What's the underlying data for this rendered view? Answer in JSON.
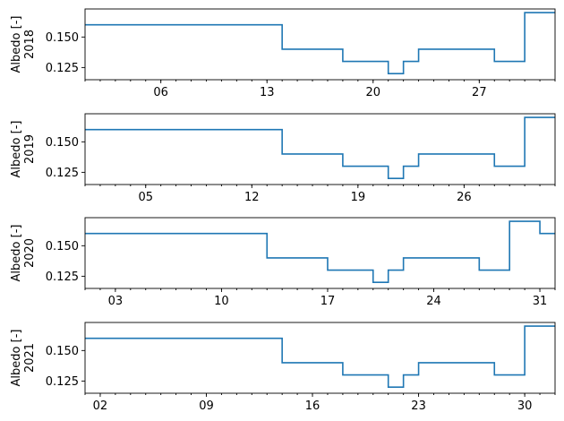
{
  "chart_data": [
    {
      "type": "line",
      "step": "post",
      "ylabel_lines": [
        "Albedo [-]",
        "2018"
      ],
      "series_color": "#1f77b4",
      "xlim": [
        1,
        32
      ],
      "ylim": [
        0.115,
        0.173
      ],
      "yticks": [
        0.125,
        0.15
      ],
      "ytick_labels": [
        "0.125",
        "0.150"
      ],
      "xticks": [
        6,
        13,
        20,
        27
      ],
      "xtick_labels": [
        "06",
        "13",
        "20",
        "27"
      ],
      "x_minor_step": 1,
      "steps": [
        [
          1,
          0.16
        ],
        [
          14,
          0.14
        ],
        [
          18,
          0.13
        ],
        [
          21,
          0.12
        ],
        [
          22,
          0.13
        ],
        [
          23,
          0.14
        ],
        [
          28,
          0.13
        ],
        [
          30,
          0.17
        ],
        [
          32,
          0.17
        ]
      ]
    },
    {
      "type": "line",
      "step": "post",
      "ylabel_lines": [
        "Albedo [-]",
        "2019"
      ],
      "series_color": "#1f77b4",
      "xlim": [
        1,
        32
      ],
      "ylim": [
        0.115,
        0.173
      ],
      "yticks": [
        0.125,
        0.15
      ],
      "ytick_labels": [
        "0.125",
        "0.150"
      ],
      "xticks": [
        5,
        12,
        19,
        26
      ],
      "xtick_labels": [
        "05",
        "12",
        "19",
        "26"
      ],
      "x_minor_step": 1,
      "steps": [
        [
          1,
          0.16
        ],
        [
          14,
          0.14
        ],
        [
          18,
          0.13
        ],
        [
          21,
          0.12
        ],
        [
          22,
          0.13
        ],
        [
          23,
          0.14
        ],
        [
          28,
          0.13
        ],
        [
          30,
          0.17
        ],
        [
          32,
          0.17
        ]
      ]
    },
    {
      "type": "line",
      "step": "post",
      "ylabel_lines": [
        "Albedo [-]",
        "2020"
      ],
      "series_color": "#1f77b4",
      "xlim": [
        1,
        32
      ],
      "ylim": [
        0.115,
        0.173
      ],
      "yticks": [
        0.125,
        0.15
      ],
      "ytick_labels": [
        "0.125",
        "0.150"
      ],
      "xticks": [
        3,
        10,
        17,
        24,
        31
      ],
      "xtick_labels": [
        "03",
        "10",
        "17",
        "24",
        "31"
      ],
      "x_minor_step": 1,
      "steps": [
        [
          1,
          0.16
        ],
        [
          13,
          0.14
        ],
        [
          17,
          0.13
        ],
        [
          20,
          0.12
        ],
        [
          21,
          0.13
        ],
        [
          22,
          0.14
        ],
        [
          27,
          0.13
        ],
        [
          29,
          0.17
        ],
        [
          31,
          0.16
        ],
        [
          32,
          0.16
        ]
      ]
    },
    {
      "type": "line",
      "step": "post",
      "ylabel_lines": [
        "Albedo [-]",
        "2021"
      ],
      "series_color": "#1f77b4",
      "xlim": [
        1,
        32
      ],
      "ylim": [
        0.115,
        0.173
      ],
      "yticks": [
        0.125,
        0.15
      ],
      "ytick_labels": [
        "0.125",
        "0.150"
      ],
      "xticks": [
        2,
        9,
        16,
        23,
        30
      ],
      "xtick_labels": [
        "02",
        "09",
        "16",
        "23",
        "30"
      ],
      "x_minor_step": 1,
      "steps": [
        [
          1,
          0.16
        ],
        [
          14,
          0.14
        ],
        [
          18,
          0.13
        ],
        [
          21,
          0.12
        ],
        [
          22,
          0.13
        ],
        [
          23,
          0.14
        ],
        [
          28,
          0.13
        ],
        [
          30,
          0.17
        ],
        [
          32,
          0.17
        ]
      ]
    }
  ]
}
